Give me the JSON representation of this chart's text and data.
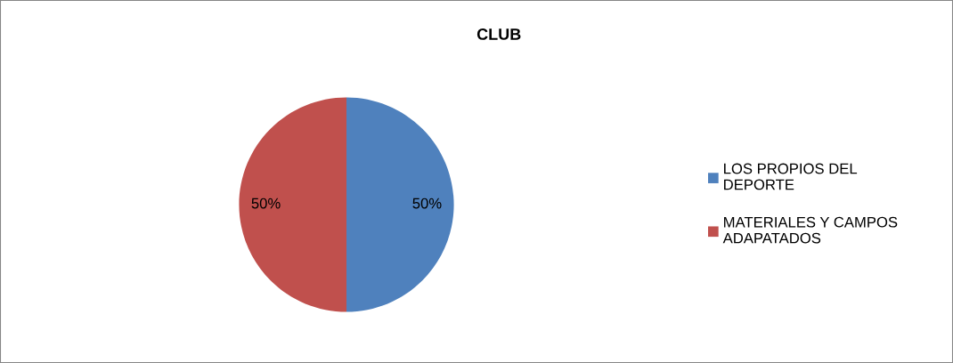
{
  "chart_data": {
    "type": "pie",
    "title": "CLUB",
    "categories": [
      "LOS PROPIOS DEL DEPORTE",
      "MATERIALES Y CAMPOS ADAPATADOS"
    ],
    "values": [
      50,
      50
    ],
    "colors": [
      "#4f81bd",
      "#c0504d"
    ],
    "value_labels": [
      "50%",
      "50%"
    ],
    "legend": "right"
  }
}
